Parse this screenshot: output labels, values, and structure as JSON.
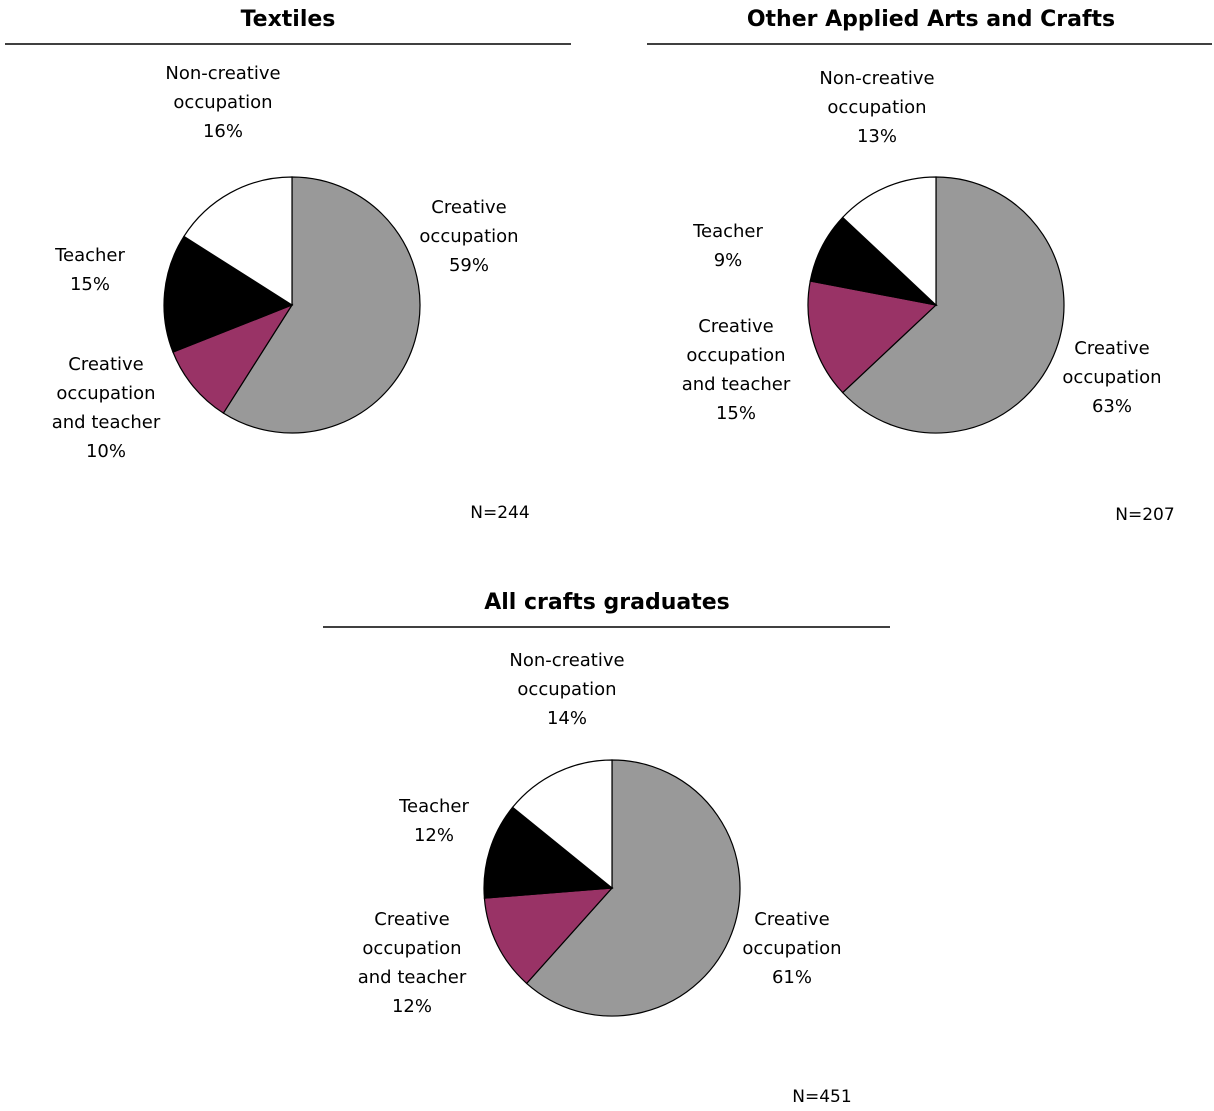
{
  "colors": {
    "creative_occupation": "#999999",
    "creative_occupation_and_teacher": "#993366",
    "teacher": "#000000",
    "non_creative_occupation": "#ffffff"
  },
  "chart_data": [
    {
      "type": "pie",
      "title": "Textiles",
      "n_label": "N=244",
      "slices": [
        {
          "name": "Creative occupation",
          "lines": [
            "Creative",
            "occupation"
          ],
          "pct_label": "59%",
          "value": 59,
          "color": "#999999"
        },
        {
          "name": "Creative occupation and teacher",
          "lines": [
            "Creative",
            "occupation",
            "and teacher"
          ],
          "pct_label": "10%",
          "value": 10,
          "color": "#993366"
        },
        {
          "name": "Teacher",
          "lines": [
            "Teacher"
          ],
          "pct_label": "15%",
          "value": 15,
          "color": "#000000"
        },
        {
          "name": "Non-creative occupation",
          "lines": [
            "Non-creative",
            "occupation"
          ],
          "pct_label": "16%",
          "value": 16,
          "color": "#ffffff"
        }
      ]
    },
    {
      "type": "pie",
      "title": "Other Applied Arts and Crafts",
      "n_label": "N=207",
      "slices": [
        {
          "name": "Creative occupation",
          "lines": [
            "Creative",
            "occupation"
          ],
          "pct_label": "63%",
          "value": 63,
          "color": "#999999"
        },
        {
          "name": "Creative occupation and teacher",
          "lines": [
            "Creative",
            "occupation",
            "and teacher"
          ],
          "pct_label": "15%",
          "value": 15,
          "color": "#993366"
        },
        {
          "name": "Teacher",
          "lines": [
            "Teacher"
          ],
          "pct_label": "9%",
          "value": 9,
          "color": "#000000"
        },
        {
          "name": "Non-creative occupation",
          "lines": [
            "Non-creative",
            "occupation"
          ],
          "pct_label": "13%",
          "value": 13,
          "color": "#ffffff"
        }
      ]
    },
    {
      "type": "pie",
      "title": "All crafts graduates",
      "n_label": "N=451",
      "slices": [
        {
          "name": "Creative occupation",
          "lines": [
            "Creative",
            "occupation"
          ],
          "pct_label": "61%",
          "value": 61,
          "color": "#999999"
        },
        {
          "name": "Creative occupation and teacher",
          "lines": [
            "Creative",
            "occupation",
            "and teacher"
          ],
          "pct_label": "12%",
          "value": 12,
          "color": "#993366"
        },
        {
          "name": "Teacher",
          "lines": [
            "Teacher"
          ],
          "pct_label": "12%",
          "value": 12,
          "color": "#000000"
        },
        {
          "name": "Non-creative occupation",
          "lines": [
            "Non-creative",
            "occupation"
          ],
          "pct_label": "14%",
          "value": 14,
          "color": "#ffffff"
        }
      ]
    }
  ]
}
